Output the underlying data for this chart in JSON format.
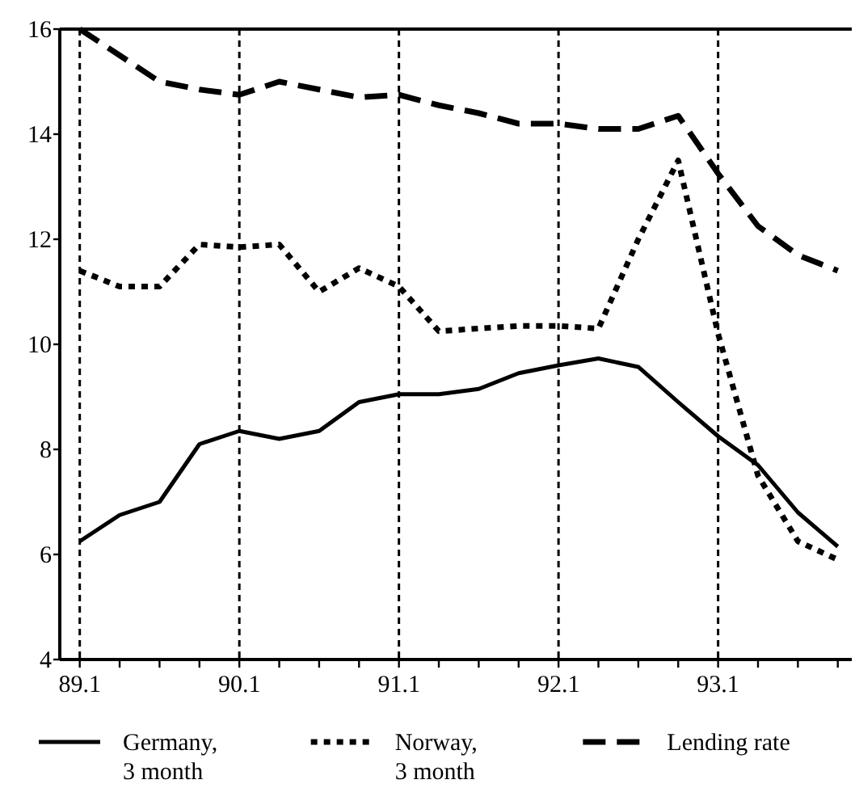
{
  "chart_data": {
    "type": "line",
    "categories": [
      "89.1",
      null,
      null,
      null,
      "90.1",
      null,
      null,
      null,
      "91.1",
      null,
      null,
      null,
      "92.1",
      null,
      null,
      null,
      "93.1",
      null,
      null,
      null
    ],
    "series": [
      {
        "name": "Germany, 3 month",
        "color": "#000000",
        "line_style": "solid",
        "values": [
          6.25,
          6.75,
          7.0,
          8.1,
          8.35,
          8.2,
          8.35,
          8.9,
          9.05,
          9.05,
          9.15,
          9.45,
          9.6,
          9.73,
          9.57,
          8.9,
          8.25,
          7.7,
          6.8,
          6.15
        ]
      },
      {
        "name": "Norway, 3 month",
        "color": "#000000",
        "line_style": "dotted",
        "values": [
          11.4,
          11.1,
          11.1,
          11.9,
          11.85,
          11.9,
          11.0,
          11.45,
          11.1,
          10.25,
          10.3,
          10.35,
          10.35,
          10.3,
          12.0,
          13.5,
          10.2,
          7.5,
          6.25,
          5.9
        ]
      },
      {
        "name": "Lending rate",
        "color": "#000000",
        "line_style": "dashed",
        "values": [
          16.0,
          15.5,
          15.0,
          14.85,
          14.75,
          15.0,
          14.85,
          14.7,
          14.75,
          14.55,
          14.4,
          14.2,
          14.2,
          14.1,
          14.1,
          14.35,
          13.25,
          12.25,
          11.7,
          11.4
        ]
      }
    ],
    "ylim": [
      4,
      16
    ],
    "yticks": [
      4,
      6,
      8,
      10,
      12,
      14,
      16
    ],
    "grid": "x",
    "legend": "bottom"
  }
}
